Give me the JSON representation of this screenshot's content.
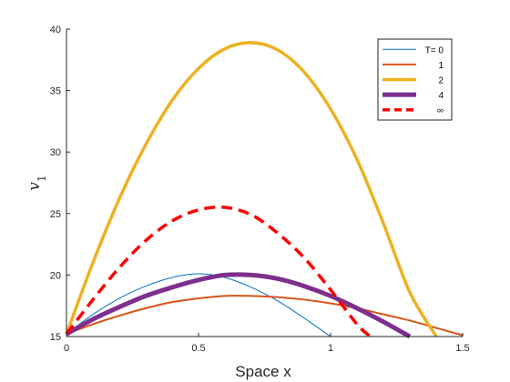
{
  "chart_data": {
    "type": "line",
    "title": "",
    "xlabel": "Space x",
    "ylabel_var": "v",
    "ylabel_sub": "1",
    "xlim": [
      0,
      1.5
    ],
    "ylim": [
      15,
      40
    ],
    "xticks": [
      0,
      0.5,
      1,
      1.5
    ],
    "xtick_labels": [
      "0",
      "0.5",
      "1",
      "1.5"
    ],
    "yticks": [
      15,
      20,
      25,
      30,
      35,
      40
    ],
    "ytick_labels": [
      "15",
      "20",
      "25",
      "30",
      "35",
      "40"
    ],
    "grid": false,
    "legend_position": "top-right",
    "series": [
      {
        "name": "T= 0",
        "color": "#0072BD",
        "line_style": "solid",
        "weight": "thin",
        "x": [
          0,
          0.1,
          0.2,
          0.3,
          0.4,
          0.5,
          0.6,
          0.7,
          0.8,
          0.9,
          1.0
        ],
        "y": [
          15.2,
          16.8,
          18.1,
          19.1,
          19.8,
          20.1,
          19.8,
          19.0,
          17.9,
          16.5,
          15.0
        ]
      },
      {
        "name": "1",
        "color": "#D95319",
        "line_style": "solid",
        "weight": "medium",
        "x": [
          0,
          0.1,
          0.2,
          0.3,
          0.4,
          0.5,
          0.6,
          0.7,
          0.8,
          0.9,
          1.0,
          1.1,
          1.2,
          1.3,
          1.4,
          1.5
        ],
        "y": [
          15.2,
          16.0,
          16.7,
          17.3,
          17.8,
          18.1,
          18.3,
          18.3,
          18.2,
          18.0,
          17.7,
          17.3,
          16.8,
          16.3,
          15.7,
          15.1
        ]
      },
      {
        "name": "2",
        "color": "#EDB120",
        "line_style": "solid",
        "weight": "thick",
        "x": [
          0,
          0.1,
          0.2,
          0.3,
          0.4,
          0.5,
          0.6,
          0.7,
          0.8,
          0.9,
          1.0,
          1.1,
          1.2,
          1.3,
          1.4
        ],
        "y": [
          15.2,
          21.0,
          26.2,
          30.6,
          34.2,
          36.8,
          38.4,
          38.9,
          38.3,
          36.5,
          33.5,
          29.4,
          24.2,
          18.6,
          15.0
        ]
      },
      {
        "name": "4",
        "color": "#7E2F8E",
        "line_style": "solid",
        "weight": "extra-thick",
        "x": [
          0,
          0.1,
          0.2,
          0.3,
          0.4,
          0.5,
          0.6,
          0.7,
          0.8,
          0.9,
          1.0,
          1.1,
          1.2,
          1.3
        ],
        "y": [
          15.2,
          16.4,
          17.4,
          18.3,
          19.0,
          19.6,
          20.0,
          20.0,
          19.7,
          19.1,
          18.3,
          17.3,
          16.2,
          15.0
        ]
      },
      {
        "name": "∞",
        "color": "#FF0000",
        "line_style": "dashed",
        "weight": "thick",
        "x": [
          0,
          0.1,
          0.2,
          0.3,
          0.4,
          0.5,
          0.6,
          0.7,
          0.8,
          0.9,
          1.0,
          1.1,
          1.15
        ],
        "y": [
          15.2,
          18.0,
          20.6,
          22.8,
          24.4,
          25.3,
          25.5,
          24.9,
          23.4,
          21.4,
          18.8,
          16.0,
          15.0
        ]
      }
    ]
  }
}
